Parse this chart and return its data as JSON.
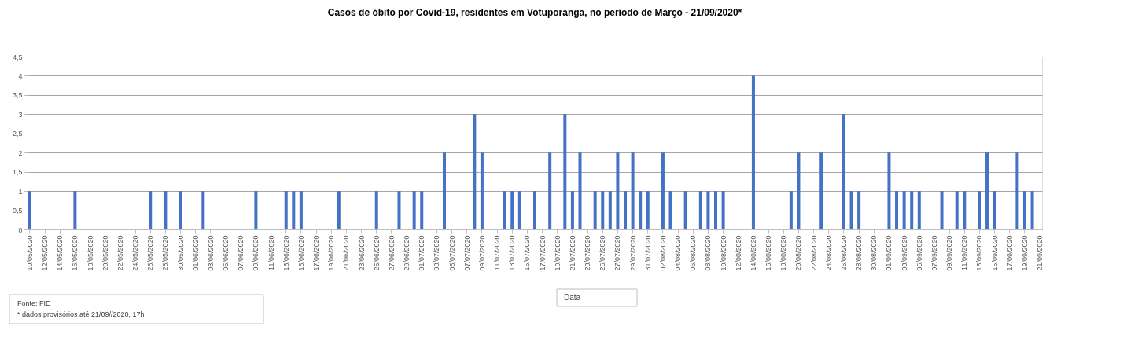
{
  "chart_data": {
    "type": "bar",
    "title": "Casos de óbito por Covid-19, residentes em Votuporanga, no período de Março - 21/09/2020*",
    "xlabel": "Data",
    "annotations": [
      "Fonte: FIE",
      "* dados provisórios até  21/09//2020, 17h"
    ],
    "categories": [
      "10/05/2020",
      null,
      "12/05/2020",
      null,
      "14/05/2020",
      null,
      "16/05/2020",
      null,
      "18/05/2020",
      null,
      "20/05/2020",
      null,
      "22/05/2020",
      null,
      "24/05/2020",
      null,
      "26/05/2020",
      null,
      "28/05/2020",
      null,
      "30/05/2020",
      null,
      "01/06/2020",
      null,
      "03/06/2020",
      null,
      "05/06/2020",
      null,
      "07/06/2020",
      null,
      "09/06/2020",
      null,
      "11/06/2020",
      null,
      "13/06/2020",
      null,
      "15/06/2020",
      null,
      "17/06/2020",
      null,
      "19/06/2020",
      null,
      "21/06/2020",
      null,
      "23/06/2020",
      null,
      "25/06/2020",
      null,
      "27/06/2020",
      null,
      "29/06/2020",
      null,
      "01/07/2020",
      null,
      "03/07/2020",
      null,
      "05/07/2020",
      null,
      "07/07/2020",
      null,
      "09/07/2020",
      null,
      "11/07/2020",
      null,
      "13/07/2020",
      null,
      "15/07/2020",
      null,
      "17/07/2020",
      null,
      "19/07/2020",
      null,
      "21/07/2020",
      null,
      "23/07/2020",
      null,
      "25/07/2020",
      null,
      "27/07/2020",
      null,
      "29/07/2020",
      null,
      "31/07/2020",
      null,
      "02/08/2020",
      null,
      "04/08/2020",
      null,
      "06/08/2020",
      null,
      "08/08/2020",
      null,
      "10/08/2020",
      null,
      "12/08/2020",
      null,
      "14/08/2020",
      null,
      "16/08/2020",
      null,
      "18/08/2020",
      null,
      "20/08/2020",
      null,
      "22/08/2020",
      null,
      "24/08/2020",
      null,
      "26/08/2020",
      null,
      "28/08/2020",
      null,
      "30/08/2020",
      null,
      "01/09/2020",
      null,
      "03/09/2020",
      null,
      "05/09/2020",
      null,
      "07/09/2020",
      null,
      "09/09/2020",
      null,
      "11/09/2020",
      null,
      "13/09/2020",
      null,
      "15/09/2020",
      null,
      "17/09/2020",
      null,
      "19/09/2020",
      null,
      "21/09/2020"
    ],
    "values": [
      1,
      0,
      0,
      0,
      0,
      0,
      1,
      0,
      0,
      0,
      0,
      0,
      0,
      0,
      0,
      0,
      1,
      0,
      1,
      0,
      1,
      0,
      0,
      1,
      0,
      0,
      0,
      0,
      0,
      0,
      1,
      0,
      0,
      0,
      1,
      1,
      1,
      0,
      0,
      0,
      0,
      1,
      0,
      0,
      0,
      0,
      1,
      0,
      0,
      1,
      0,
      1,
      1,
      0,
      0,
      2,
      0,
      0,
      0,
      3,
      2,
      0,
      0,
      1,
      1,
      1,
      0,
      1,
      0,
      2,
      0,
      3,
      1,
      2,
      0,
      1,
      1,
      1,
      2,
      1,
      2,
      1,
      1,
      0,
      2,
      1,
      0,
      1,
      0,
      1,
      1,
      1,
      1,
      0,
      0,
      0,
      4,
      0,
      0,
      0,
      0,
      1,
      2,
      0,
      0,
      2,
      0,
      0,
      3,
      1,
      1,
      0,
      0,
      0,
      2,
      1,
      1,
      1,
      1,
      0,
      0,
      1,
      0,
      1,
      1,
      0,
      1,
      2,
      1,
      0,
      0,
      2,
      1,
      1,
      0
    ],
    "color": "#4472c4",
    "ylim": [
      0,
      4.5
    ],
    "yticks": [
      0,
      {
        "value": 0.5,
        "label": "0,5"
      },
      1,
      {
        "value": 1.5,
        "label": "1,5"
      },
      2,
      {
        "value": 2.5,
        "label": "2,5"
      },
      3,
      {
        "value": 3.5,
        "label": "3,5"
      },
      4,
      {
        "value": 4.5,
        "label": "4,5"
      }
    ],
    "grid": "y"
  }
}
